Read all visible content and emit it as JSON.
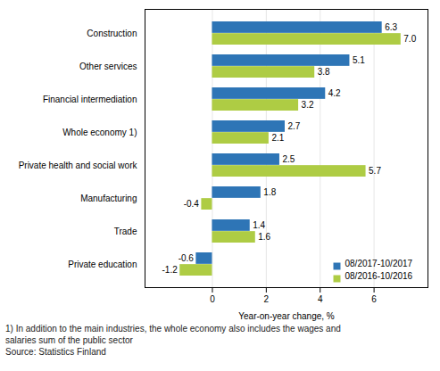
{
  "chart_data": {
    "type": "bar",
    "orientation": "horizontal",
    "categories": [
      "Construction",
      "Other services",
      "Financial intermediation",
      "Whole economy 1)",
      "Private health and social work",
      "Manufacturing",
      "Trade",
      "Private education"
    ],
    "series": [
      {
        "name": "08/2017-10/2017",
        "color": "#2E75B6",
        "values": [
          6.3,
          5.1,
          4.2,
          2.7,
          2.5,
          1.8,
          1.4,
          -0.6
        ],
        "value_labels": [
          "6.3",
          "5.1",
          "4.2",
          "2.7",
          "2.5",
          "1.8",
          "1.4",
          "-0.6"
        ]
      },
      {
        "name": "08/2016-10/2016",
        "color": "#AECC44",
        "values": [
          7.0,
          3.8,
          3.2,
          2.1,
          5.7,
          -0.4,
          1.6,
          -1.2
        ],
        "value_labels": [
          "7.0",
          "3.8",
          "3.2",
          "2.1",
          "5.7",
          "-0.4",
          "1.6",
          "-1.2"
        ]
      }
    ],
    "xlabel": "Year-on-year change, %",
    "xlim": [
      -2.5,
      8.0
    ],
    "xticks": [
      0,
      2,
      4,
      6
    ],
    "grid": true,
    "data_labels": true,
    "legend": "lower right",
    "annotations": [
      "1) In addition to the main industries, the whole economy also includes the wages and",
      "salaries sum of the public sector",
      "Source: Statistics Finland"
    ]
  }
}
